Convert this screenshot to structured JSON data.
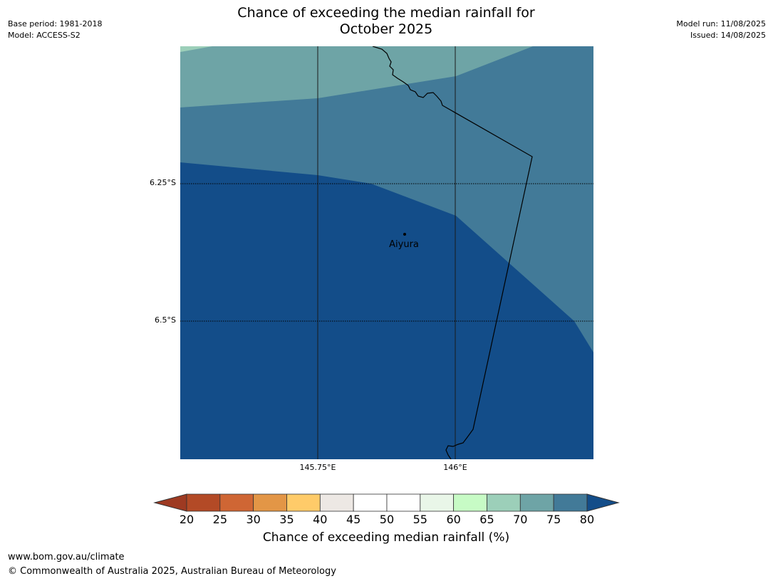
{
  "header": {
    "base_period": "Base period: 1981-2018",
    "model": "Model: ACCESS-S2",
    "model_run": "Model run: 11/08/2025",
    "issued": "Issued: 14/08/2025",
    "title_line1": "Chance of exceeding the median rainfall for",
    "title_line2": "October 2025"
  },
  "map": {
    "lat_labels": [
      "6.25°S",
      "6.5°S"
    ],
    "lon_labels": [
      "145.75°E",
      "146°E"
    ],
    "town": "Aiyura",
    "zone_colors": {
      "band_65_70": "#9ccfb9",
      "band_70_75": "#6ea4a6",
      "band_75_80": "#427a98",
      "above_80": "#134d89"
    }
  },
  "colorbar": {
    "label": "Chance of exceeding median rainfall (%)",
    "ticks": [
      "20",
      "25",
      "30",
      "35",
      "40",
      "45",
      "50",
      "55",
      "60",
      "65",
      "70",
      "75",
      "80"
    ],
    "below_color": "#9e3a22",
    "above_color": "#134d89",
    "colors": [
      "#b34a26",
      "#cf6634",
      "#e39646",
      "#ffcb69",
      "#ede8e4",
      "#ffffff",
      "#ffffff",
      "#e9f6e8",
      "#c7fbc5",
      "#9ccfb9",
      "#6ea4a6",
      "#427a98"
    ]
  },
  "footer": {
    "url": "www.bom.gov.au/climate",
    "copyright": "© Commonwealth of Australia 2025, Australian Bureau of Meteorology"
  }
}
